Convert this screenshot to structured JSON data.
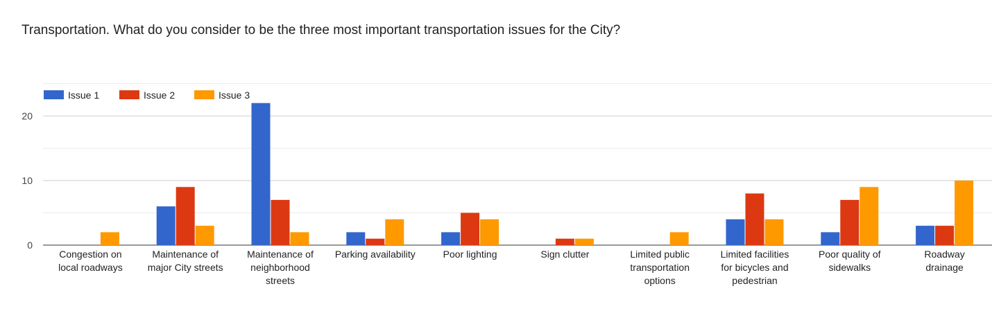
{
  "chart_data": {
    "type": "bar",
    "title": "Transportation.  What do you consider to be the three most important transportation issues for the City?",
    "categories": [
      [
        "Congestion on",
        "local roadways"
      ],
      [
        "Maintenance of",
        "major City streets"
      ],
      [
        "Maintenance of",
        "neighborhood",
        "streets"
      ],
      [
        "Parking availability"
      ],
      [
        "Poor lighting"
      ],
      [
        "Sign clutter"
      ],
      [
        "Limited public",
        "transportation",
        "options"
      ],
      [
        "Limited facilities",
        "for bicycles and",
        "pedestrian"
      ],
      [
        "Poor quality of",
        "sidewalks"
      ],
      [
        "Roadway",
        "drainage"
      ]
    ],
    "series": [
      {
        "name": "Issue 1",
        "color": "#3366cc",
        "values": [
          0,
          6,
          22,
          2,
          2,
          0,
          0,
          4,
          2,
          3
        ]
      },
      {
        "name": "Issue 2",
        "color": "#dc3912",
        "values": [
          0,
          9,
          7,
          1,
          5,
          1,
          0,
          8,
          7,
          3
        ]
      },
      {
        "name": "Issue 3",
        "color": "#ff9900",
        "values": [
          2,
          3,
          2,
          4,
          4,
          1,
          2,
          4,
          9,
          10
        ]
      }
    ],
    "y_ticks": [
      "0",
      "10",
      "20"
    ],
    "ylim": [
      0,
      25
    ],
    "legend_position": "top-left",
    "grid": true
  }
}
